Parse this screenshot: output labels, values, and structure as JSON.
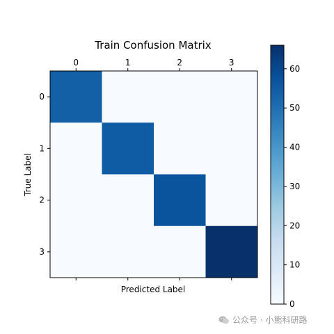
{
  "chart_data": {
    "type": "heatmap",
    "title": "Train Confusion Matrix",
    "xlabel": "Predicted Label",
    "ylabel": "True Label",
    "x_tick_labels": [
      "0",
      "1",
      "2",
      "3"
    ],
    "y_tick_labels": [
      "0",
      "1",
      "2",
      "3"
    ],
    "matrix": [
      [
        54,
        0,
        0,
        0
      ],
      [
        0,
        55,
        0,
        0
      ],
      [
        0,
        0,
        57,
        0
      ],
      [
        0,
        0,
        0,
        66
      ]
    ],
    "colormap": "Blues",
    "color_range": [
      0,
      66
    ],
    "colorbar_ticks": [
      0,
      10,
      20,
      30,
      40,
      50,
      60
    ],
    "colors": {
      "low": "#f7fbff",
      "high": "#08306b"
    },
    "grid": false
  },
  "watermark": {
    "text": "公众号 · 小熊科研路",
    "icon": "wechat-icon"
  }
}
